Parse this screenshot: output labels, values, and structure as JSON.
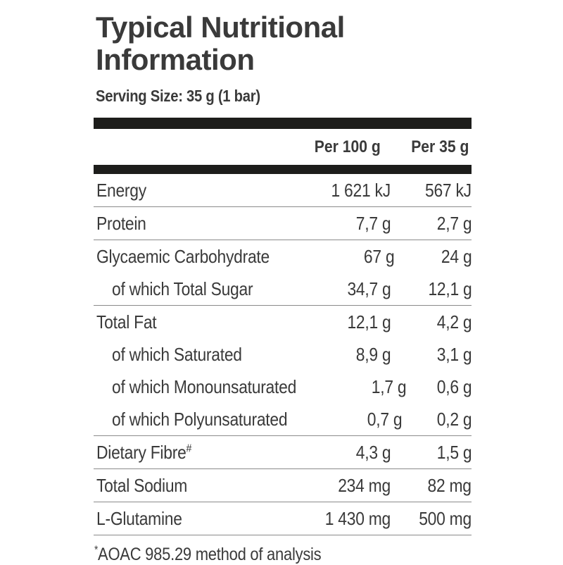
{
  "title": "Typical Nutritional Information",
  "serving_size": "Serving Size: 35 g (1 bar)",
  "colors": {
    "text": "#3a3a3a",
    "divider_bar": "#1d1d1b",
    "row_separator": "#8a8a8a",
    "background": "#ffffff"
  },
  "table": {
    "col_headers": [
      "Per 100 g",
      "Per 35 g"
    ],
    "rows": [
      {
        "label": "Energy",
        "per100": "1 621 kJ",
        "per35": "567 kJ"
      },
      {
        "label": "Protein",
        "per100": "7,7 g",
        "per35": "2,7 g"
      },
      {
        "label": "Glycaemic Carbohydrate",
        "per100": "67 g",
        "per35": "24 g"
      },
      {
        "label": "of which Total Sugar",
        "per100": "34,7 g",
        "per35": "12,1 g"
      },
      {
        "label": "Total Fat",
        "per100": "12,1 g",
        "per35": "4,2 g"
      },
      {
        "label": "of which Saturated",
        "per100": "8,9 g",
        "per35": "3,1 g"
      },
      {
        "label": "of which Monounsaturated",
        "per100": "1,7 g",
        "per35": "0,6 g"
      },
      {
        "label": "of which Polyunsaturated",
        "per100": "0,7 g",
        "per35": "0,2 g"
      },
      {
        "label": "Dietary Fibre",
        "sup": "#",
        "per100": "4,3 g",
        "per35": "1,5 g"
      },
      {
        "label": "Total Sodium",
        "per100": "234 mg",
        "per35": "82 mg"
      },
      {
        "label": "L-Glutamine",
        "per100": "1 430 mg",
        "per35": "500 mg"
      }
    ]
  },
  "footnote": {
    "marker": "*",
    "text": "AOAC 985.29 method of analysis"
  }
}
